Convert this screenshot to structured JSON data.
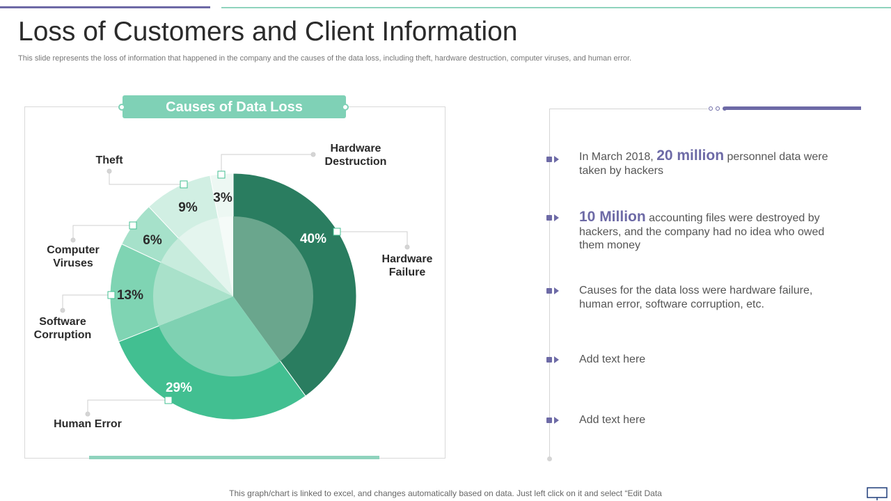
{
  "title": "Loss of Customers and Client Information",
  "subtitle": "This slide represents the loss of information that happened in the company and the causes of the data loss, including theft, hardware destruction, computer viruses, and human error.",
  "chart_title": "Causes of Data Loss",
  "chart_data": {
    "type": "pie",
    "title": "Causes of Data Loss",
    "categories": [
      "Hardware Failure",
      "Human Error",
      "Software Corruption",
      "Computer Viruses",
      "Theft",
      "Hardware Destruction"
    ],
    "values": [
      40,
      29,
      13,
      6,
      9,
      3
    ],
    "value_labels": [
      "40%",
      "29%",
      "13%",
      "6%",
      "9%",
      "3%"
    ],
    "colors": [
      "#2a7d60",
      "#42bf91",
      "#7fd4b3",
      "#a6e1ca",
      "#d1efe3",
      "#edf8f3"
    ],
    "inner_colors": [
      "#6aa68d",
      "#7fd1b2",
      "#a9e1ca",
      "#c8ecdd",
      "#e4f5ee",
      "#f5fbf8"
    ]
  },
  "bullets": [
    {
      "pre": "In March 2018,",
      "highlight": "20 million",
      "post": "personnel data were taken by hackers"
    },
    {
      "pre": "",
      "highlight": "10 Million",
      "post": "accounting files were destroyed by hackers, and the company had no idea who owed them money"
    },
    {
      "pre": "Causes for the data loss were hardware failure, human error, software corruption, etc.",
      "highlight": "",
      "post": ""
    },
    {
      "pre": "Add text here",
      "highlight": "",
      "post": ""
    },
    {
      "pre": "Add text here",
      "highlight": "",
      "post": ""
    }
  ],
  "footer": "This graph/chart is linked to excel, and changes automatically based on data. Just left click on it and select “Edit Data",
  "icons": {
    "bullet": "arrow-bullet-icon",
    "screen": "monitor-icon"
  }
}
